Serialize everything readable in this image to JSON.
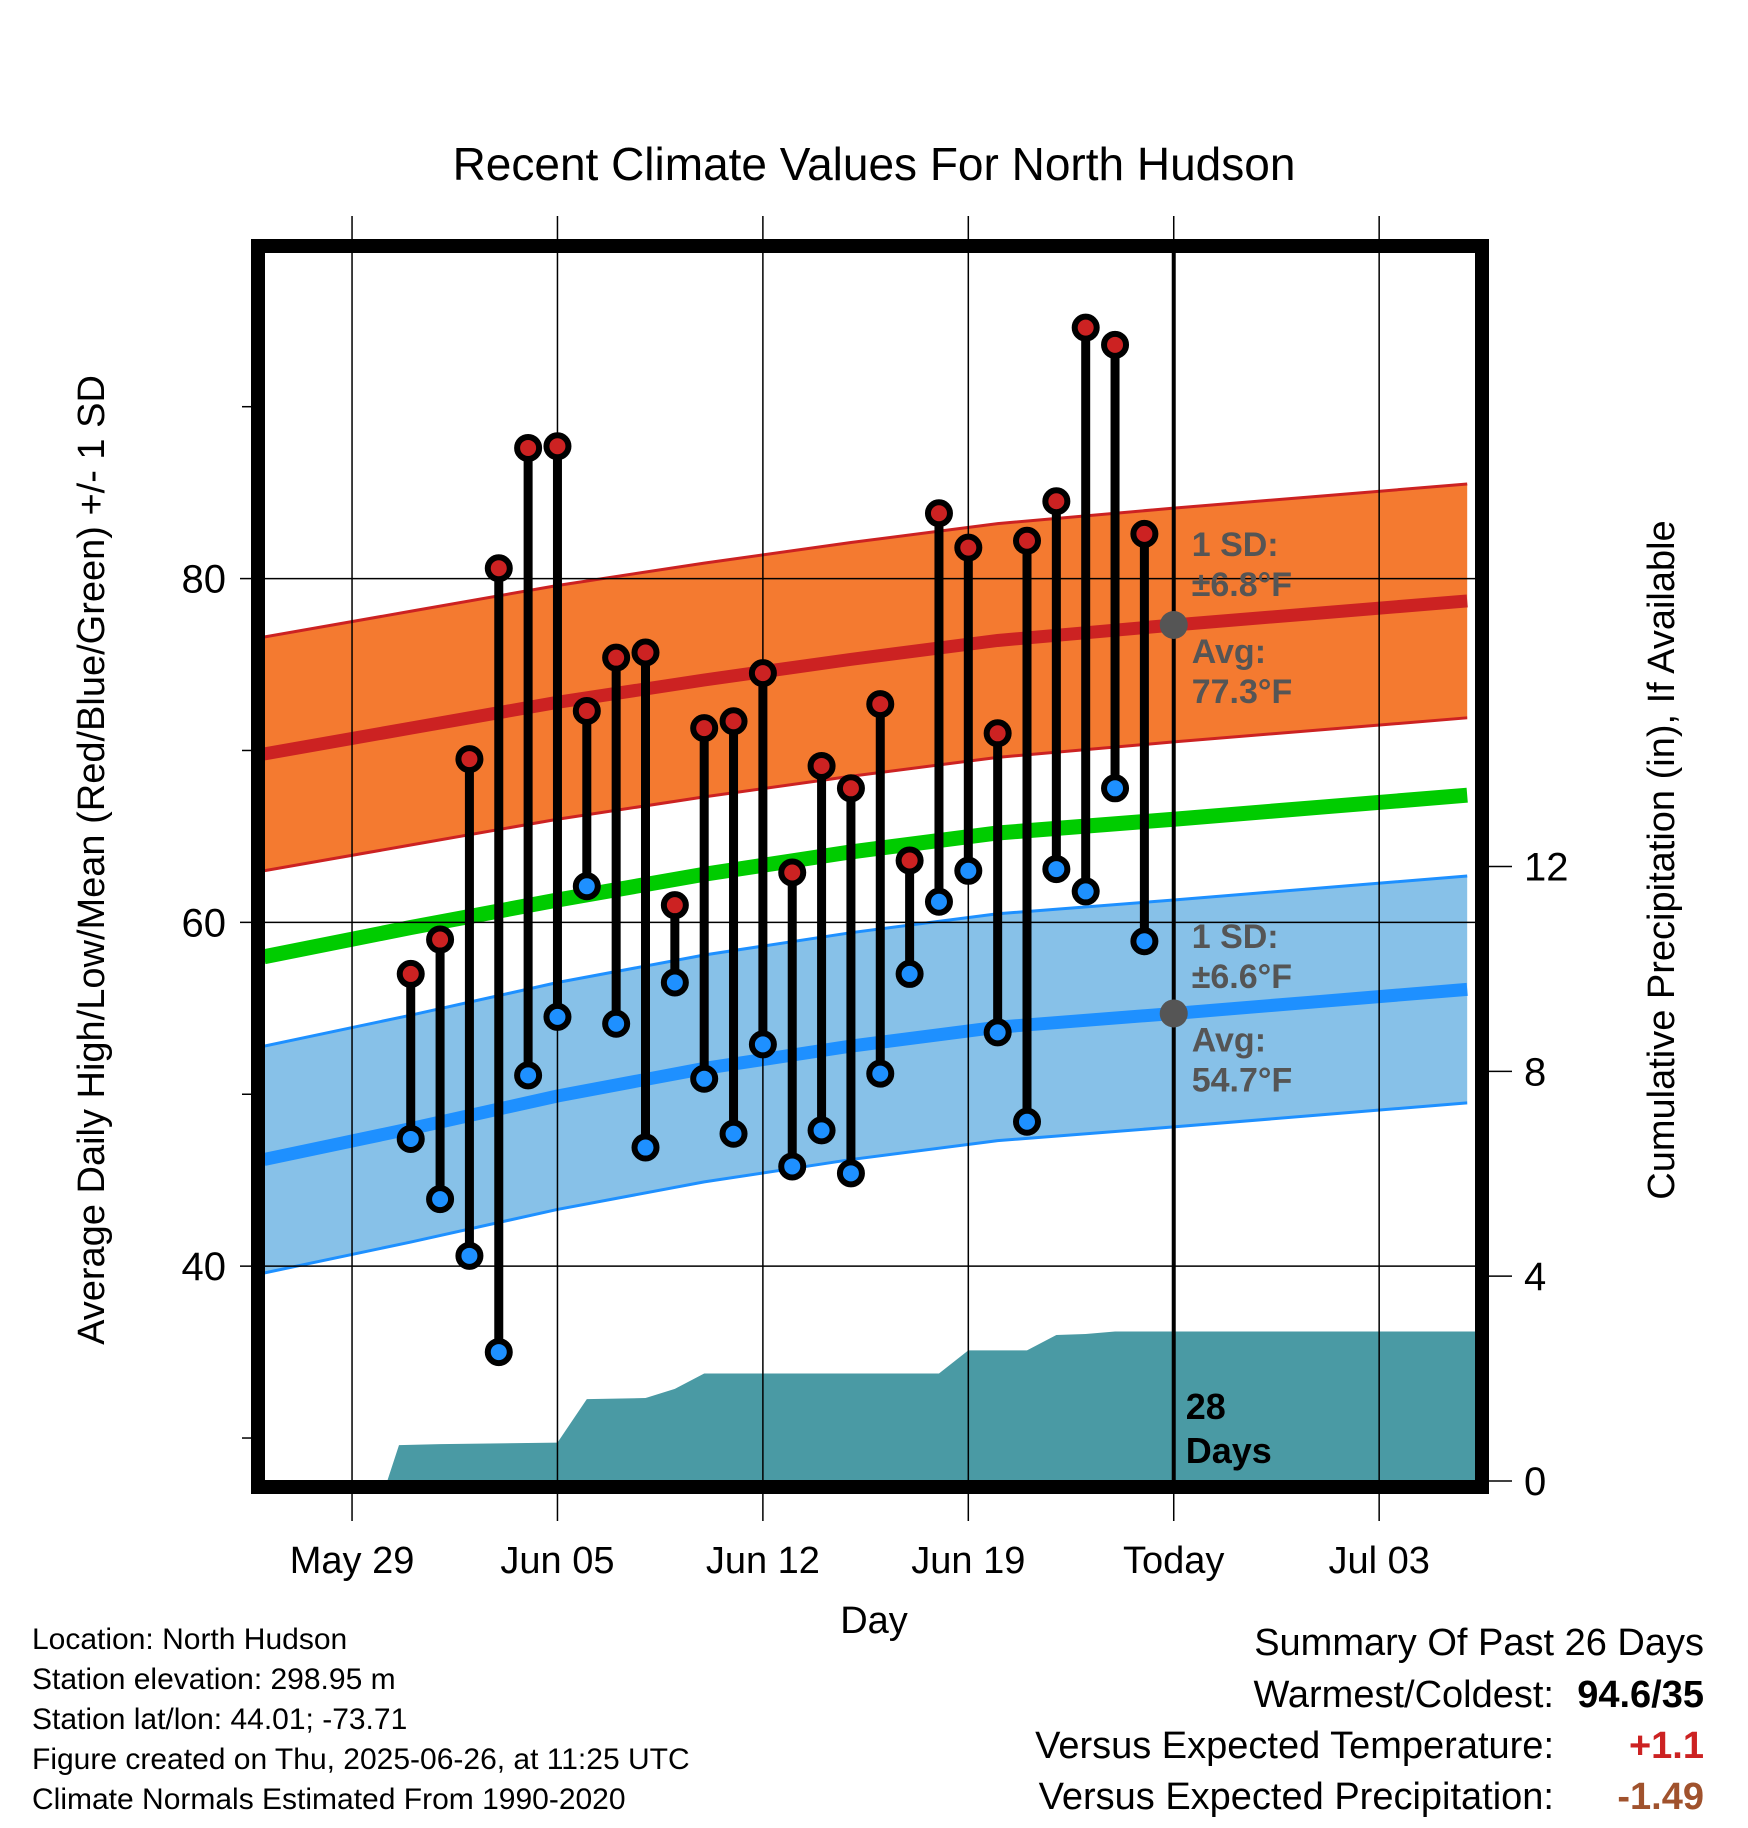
{
  "chart_data": {
    "type": "line",
    "title": "Recent Climate Values For North Hudson",
    "xlabel": "Day",
    "ylabel": "Average Daily High/Low/Mean (Red/Blue/Green) +/- 1 SD",
    "y2label": "Cumulative Precipitation (in), If Available",
    "x_ticks": [
      "May 29",
      "Jun 05",
      "Jun 12",
      "Jun 19",
      "Today",
      "Jul 03"
    ],
    "x_tick_days": [
      0,
      7,
      14,
      21,
      28,
      35
    ],
    "xlim": [
      -3,
      38.3
    ],
    "y_ticks": [
      40,
      60,
      80
    ],
    "ylim": [
      27.5,
      99
    ],
    "y2_ticks": [
      0,
      4,
      8,
      12
    ],
    "y2lim": [
      0,
      24
    ],
    "grid": true,
    "today_label_lines": [
      "28",
      "Days"
    ],
    "normals": {
      "days": [
        -3,
        2,
        7,
        12,
        17,
        22,
        28,
        33,
        38
      ],
      "high_avg": [
        69.8,
        71.3,
        72.8,
        74.1,
        75.3,
        76.4,
        77.3,
        78.0,
        78.7
      ],
      "high_sd": 6.8,
      "low_avg": [
        46.2,
        48.0,
        49.9,
        51.5,
        52.8,
        53.9,
        54.7,
        55.4,
        56.1
      ],
      "low_sd": 6.6,
      "mean_avg": [
        58.0,
        59.7,
        61.3,
        62.8,
        64.1,
        65.2,
        66.0,
        66.7,
        67.4
      ]
    },
    "series": [
      {
        "name": "Daily High",
        "color": "#cc2222",
        "days": [
          2,
          3,
          4,
          5,
          6,
          7,
          8,
          9,
          10,
          11,
          12,
          13,
          14,
          15,
          16,
          17,
          18,
          19,
          20,
          21,
          22,
          23,
          24,
          25,
          26,
          27
        ],
        "values": [
          57.0,
          59.0,
          69.5,
          80.6,
          87.6,
          87.7,
          72.3,
          75.4,
          75.7,
          61.0,
          71.3,
          71.7,
          74.5,
          62.9,
          69.1,
          67.8,
          72.7,
          63.6,
          83.8,
          81.8,
          71.0,
          82.2,
          84.5,
          94.6,
          93.6,
          82.6
        ]
      },
      {
        "name": "Daily Low",
        "color": "#1e90ff",
        "days": [
          2,
          3,
          4,
          5,
          6,
          7,
          8,
          9,
          10,
          11,
          12,
          13,
          14,
          15,
          16,
          17,
          18,
          19,
          20,
          21,
          22,
          23,
          24,
          25,
          26,
          27
        ],
        "values": [
          47.4,
          43.9,
          40.6,
          35.0,
          51.1,
          54.5,
          62.1,
          54.1,
          46.9,
          56.5,
          50.9,
          47.7,
          52.9,
          45.8,
          47.9,
          45.4,
          51.2,
          57.0,
          61.2,
          63.0,
          53.6,
          48.4,
          63.1,
          61.8,
          67.8,
          58.9
        ]
      }
    ],
    "precipitation": {
      "days": [
        1.2,
        1.6,
        3,
        7,
        8,
        10,
        11,
        12,
        13,
        20,
        21,
        23,
        24,
        25,
        26,
        28,
        38.3
      ],
      "values": [
        0.0,
        0.7,
        0.72,
        0.75,
        1.6,
        1.62,
        1.8,
        2.1,
        2.1,
        2.1,
        2.55,
        2.55,
        2.85,
        2.87,
        2.92,
        2.92,
        2.92
      ]
    },
    "annotations": {
      "high_sd_lines": [
        "1 SD:",
        "±6.8°F"
      ],
      "high_avg_lines": [
        "Avg:",
        "77.3°F"
      ],
      "low_sd_lines": [
        "1 SD:",
        "±6.6°F"
      ],
      "low_avg_lines": [
        "Avg:",
        "54.7°F"
      ]
    }
  },
  "footer": {
    "location": "Location: North Hudson",
    "elevation": "Station elevation: 298.95 m",
    "latlon": "Station lat/lon: 44.01; -73.71",
    "created": "Figure created on Thu, 2025-06-26, at 11:25 UTC",
    "normals": "Climate Normals Estimated From 1990-2020"
  },
  "summary": {
    "title": "Summary Of Past 26 Days",
    "warmest_label": "Warmest/Coldest:",
    "warmest_value": "94.6/35",
    "temp_label": "Versus Expected Temperature:",
    "temp_value": "+1.1",
    "temp_color": "#cc2222",
    "precip_label": "Versus Expected Precipitation:",
    "precip_value": "-1.49",
    "precip_color": "#a0522d"
  },
  "colors": {
    "high_band": "#f47a30",
    "high_line": "#cc2222",
    "low_band": "#87c1e8",
    "low_line": "#1e90ff",
    "mean_line": "#00cc00",
    "precip_fill": "#4a9aa4",
    "annotation_text": "#555555"
  }
}
